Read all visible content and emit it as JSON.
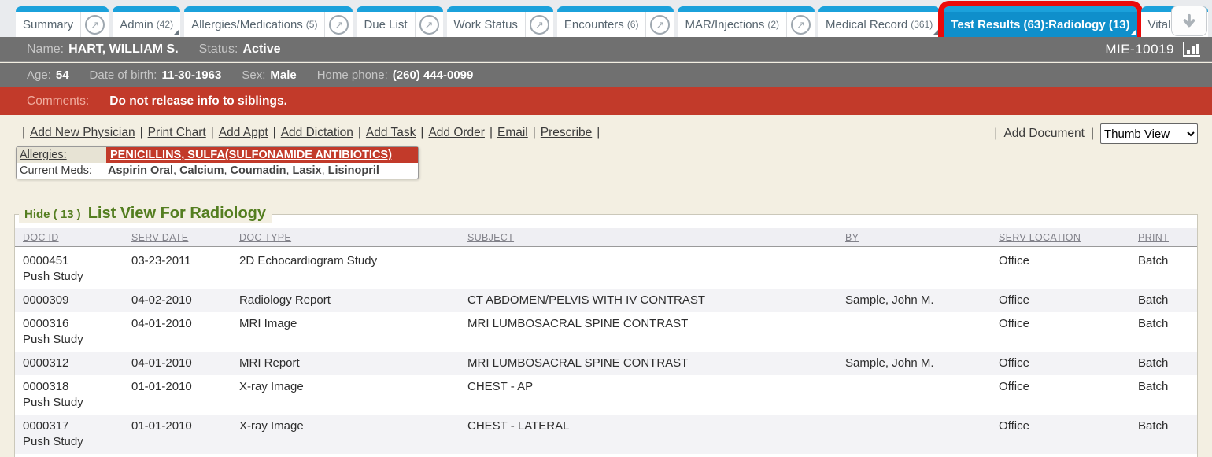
{
  "icons": {
    "popout": "↗"
  },
  "tabs": [
    {
      "label": "Summary",
      "count": ""
    },
    {
      "label": "Admin",
      "count": "(42)"
    },
    {
      "label": "Allergies/Medications",
      "count": "(5)"
    },
    {
      "label": "Due List",
      "count": ""
    },
    {
      "label": "Work Status",
      "count": ""
    },
    {
      "label": "Encounters",
      "count": "(6)"
    },
    {
      "label": "MAR/Injections",
      "count": "(2)"
    },
    {
      "label": "Medical Record",
      "count": "(361)"
    },
    {
      "label": "Test Results (63):Radiology (13)",
      "count": ""
    },
    {
      "label": "Vital Signs",
      "count": ""
    }
  ],
  "patient": {
    "name_label": "Name:",
    "name": "HART, WILLIAM S.",
    "status_label": "Status:",
    "status": "Active",
    "id": "MIE-10019",
    "age_label": "Age:",
    "age": "54",
    "dob_label": "Date of birth:",
    "dob": "11-30-1963",
    "sex_label": "Sex:",
    "sex": "Male",
    "phone_label": "Home phone:",
    "phone": "(260) 444-0099"
  },
  "comments": {
    "label": "Comments:",
    "text": "Do not release info to siblings."
  },
  "actions": [
    "Add New Physician",
    "Print Chart",
    "Add Appt",
    "Add Dictation",
    "Add Task",
    "Add Order",
    "Email",
    "Prescribe"
  ],
  "toolbar": {
    "add_document": "Add Document",
    "view_select": "Thumb View"
  },
  "allergies_panel": {
    "allergies_label": "Allergies:",
    "allergies_value": "PENICILLINS, SULFA(SULFONAMIDE ANTIBIOTICS)",
    "meds_label": "Current Meds:",
    "meds": [
      "Aspirin Oral",
      "Calcium",
      "Coumadin",
      "Lasix",
      "Lisinopril"
    ]
  },
  "list_view": {
    "hide_label": "Hide ( 13 )",
    "title": "List View For Radiology",
    "columns": [
      "DOC ID",
      "SERV DATE",
      "DOC TYPE",
      "SUBJECT",
      "BY",
      "SERV LOCATION",
      "PRINT"
    ],
    "rows": [
      {
        "doc_id": "0000451",
        "sub": "Push Study",
        "serv_date": "03-23-2011",
        "doc_type": "2D Echocardiogram Study",
        "subject": "",
        "by": "",
        "serv_location": "Office",
        "print": "Batch"
      },
      {
        "doc_id": "0000309",
        "sub": "",
        "serv_date": "04-02-2010",
        "doc_type": "Radiology Report",
        "subject": "CT ABDOMEN/PELVIS WITH IV CONTRAST",
        "by": "Sample, John M.",
        "serv_location": "Office",
        "print": "Batch"
      },
      {
        "doc_id": "0000316",
        "sub": "Push Study",
        "serv_date": "04-01-2010",
        "doc_type": "MRI Image",
        "subject": "MRI LUMBOSACRAL SPINE CONTRAST",
        "by": "",
        "serv_location": "Office",
        "print": "Batch"
      },
      {
        "doc_id": "0000312",
        "sub": "",
        "serv_date": "04-01-2010",
        "doc_type": "MRI Report",
        "subject": "MRI LUMBOSACRAL SPINE CONTRAST",
        "by": "Sample, John M.",
        "serv_location": "Office",
        "print": "Batch"
      },
      {
        "doc_id": "0000318",
        "sub": "Push Study",
        "serv_date": "01-01-2010",
        "doc_type": "X-ray Image",
        "subject": "CHEST - AP",
        "by": "",
        "serv_location": "Office",
        "print": "Batch"
      },
      {
        "doc_id": "0000317",
        "sub": "Push Study",
        "serv_date": "01-01-2010",
        "doc_type": "X-ray Image",
        "subject": "CHEST - LATERAL",
        "by": "",
        "serv_location": "Office",
        "print": "Batch"
      }
    ]
  },
  "colors": {
    "tab_blue": "#1BA1DB",
    "active_tab_blue": "#0F8FCB",
    "banner_gray": "#707070",
    "alert_red": "#C23A2A",
    "highlight_red": "#EA0A0A",
    "section_green": "#547E20",
    "page_beige": "#F3EFE2"
  }
}
